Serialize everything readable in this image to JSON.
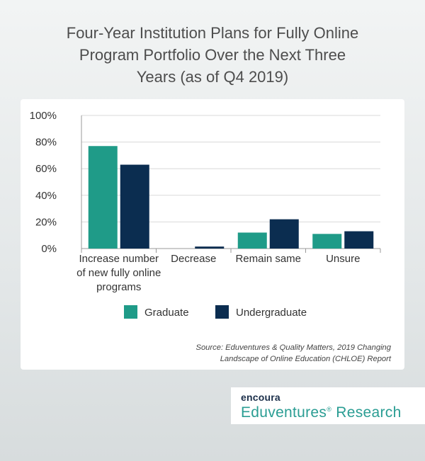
{
  "title_lines": [
    "Four-Year Institution Plans for Fully Online",
    "Program Portfolio Over the Next Three",
    "Years (as of Q4 2019)"
  ],
  "chart_data": {
    "type": "bar",
    "categories": [
      [
        "Increase number",
        "of new fully online",
        "programs"
      ],
      [
        "Decrease"
      ],
      [
        "Remain same"
      ],
      [
        "Unsure"
      ]
    ],
    "series": [
      {
        "name": "Graduate",
        "color": "#1f9b88",
        "values": [
          77,
          0,
          12,
          11
        ]
      },
      {
        "name": "Undergraduate",
        "color": "#0b2d50",
        "values": [
          63,
          1.5,
          22,
          13
        ]
      }
    ],
    "ylim": [
      0,
      100
    ],
    "yticks": [
      "0%",
      "20%",
      "40%",
      "60%",
      "80%",
      "100%"
    ],
    "grid": true,
    "legend": "bottom"
  },
  "source_lines": [
    "Source:  Eduventures & Quality Matters, 2019 Changing",
    "Landscape of Online Education (CHLOE) Report"
  ],
  "brand": {
    "company": "encoura",
    "product": "Eduventures",
    "registered_mark": "®",
    "product_suffix": " Research"
  }
}
